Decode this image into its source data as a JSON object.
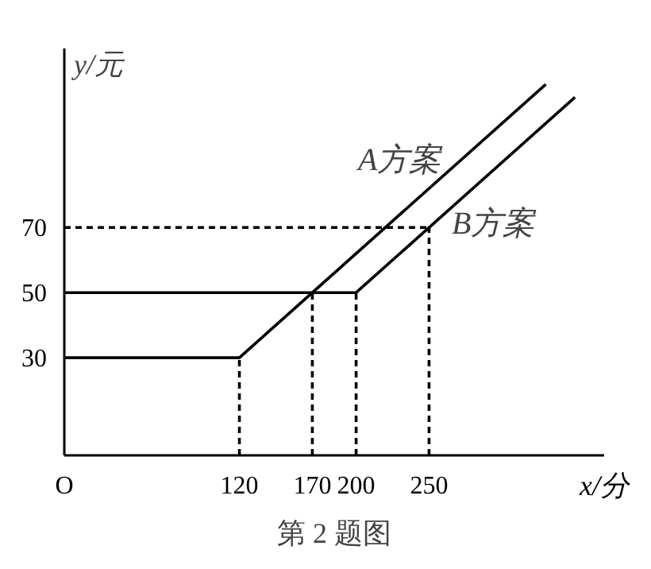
{
  "chart_data": {
    "type": "line",
    "xlabel": "x/分",
    "ylabel": "y/元",
    "annotations": [
      "第 2 题图"
    ],
    "xlim": [
      0,
      370
    ],
    "ylim": [
      0,
      125
    ],
    "xticks": [
      {
        "value": 0,
        "label": "O"
      },
      120,
      170,
      200,
      250
    ],
    "yticks": [
      30,
      50,
      70
    ],
    "grid": false,
    "line_style": "solid",
    "marker": "none",
    "series": [
      {
        "name": "A方案",
        "color": "#000000",
        "x": [
          0,
          120,
          330
        ],
        "values": [
          30,
          30,
          114
        ]
      },
      {
        "name": "B方案",
        "color": "#000000",
        "x": [
          0,
          200,
          350
        ],
        "values": [
          50,
          50,
          110
        ]
      },
      {
        "color": "#000000",
        "line_style": "dashed",
        "x": [
          120,
          120
        ],
        "values": [
          0,
          30
        ]
      },
      {
        "color": "#000000",
        "line_style": "dashed",
        "x": [
          170,
          170
        ],
        "values": [
          0,
          50
        ]
      },
      {
        "color": "#000000",
        "line_style": "dashed",
        "x": [
          200,
          200
        ],
        "values": [
          0,
          50
        ]
      },
      {
        "color": "#000000",
        "line_style": "dashed",
        "x": [
          250,
          250
        ],
        "values": [
          0,
          70
        ]
      },
      {
        "color": "#000000",
        "line_style": "dashed",
        "x": [
          0,
          250
        ],
        "values": [
          70,
          70
        ]
      }
    ]
  }
}
